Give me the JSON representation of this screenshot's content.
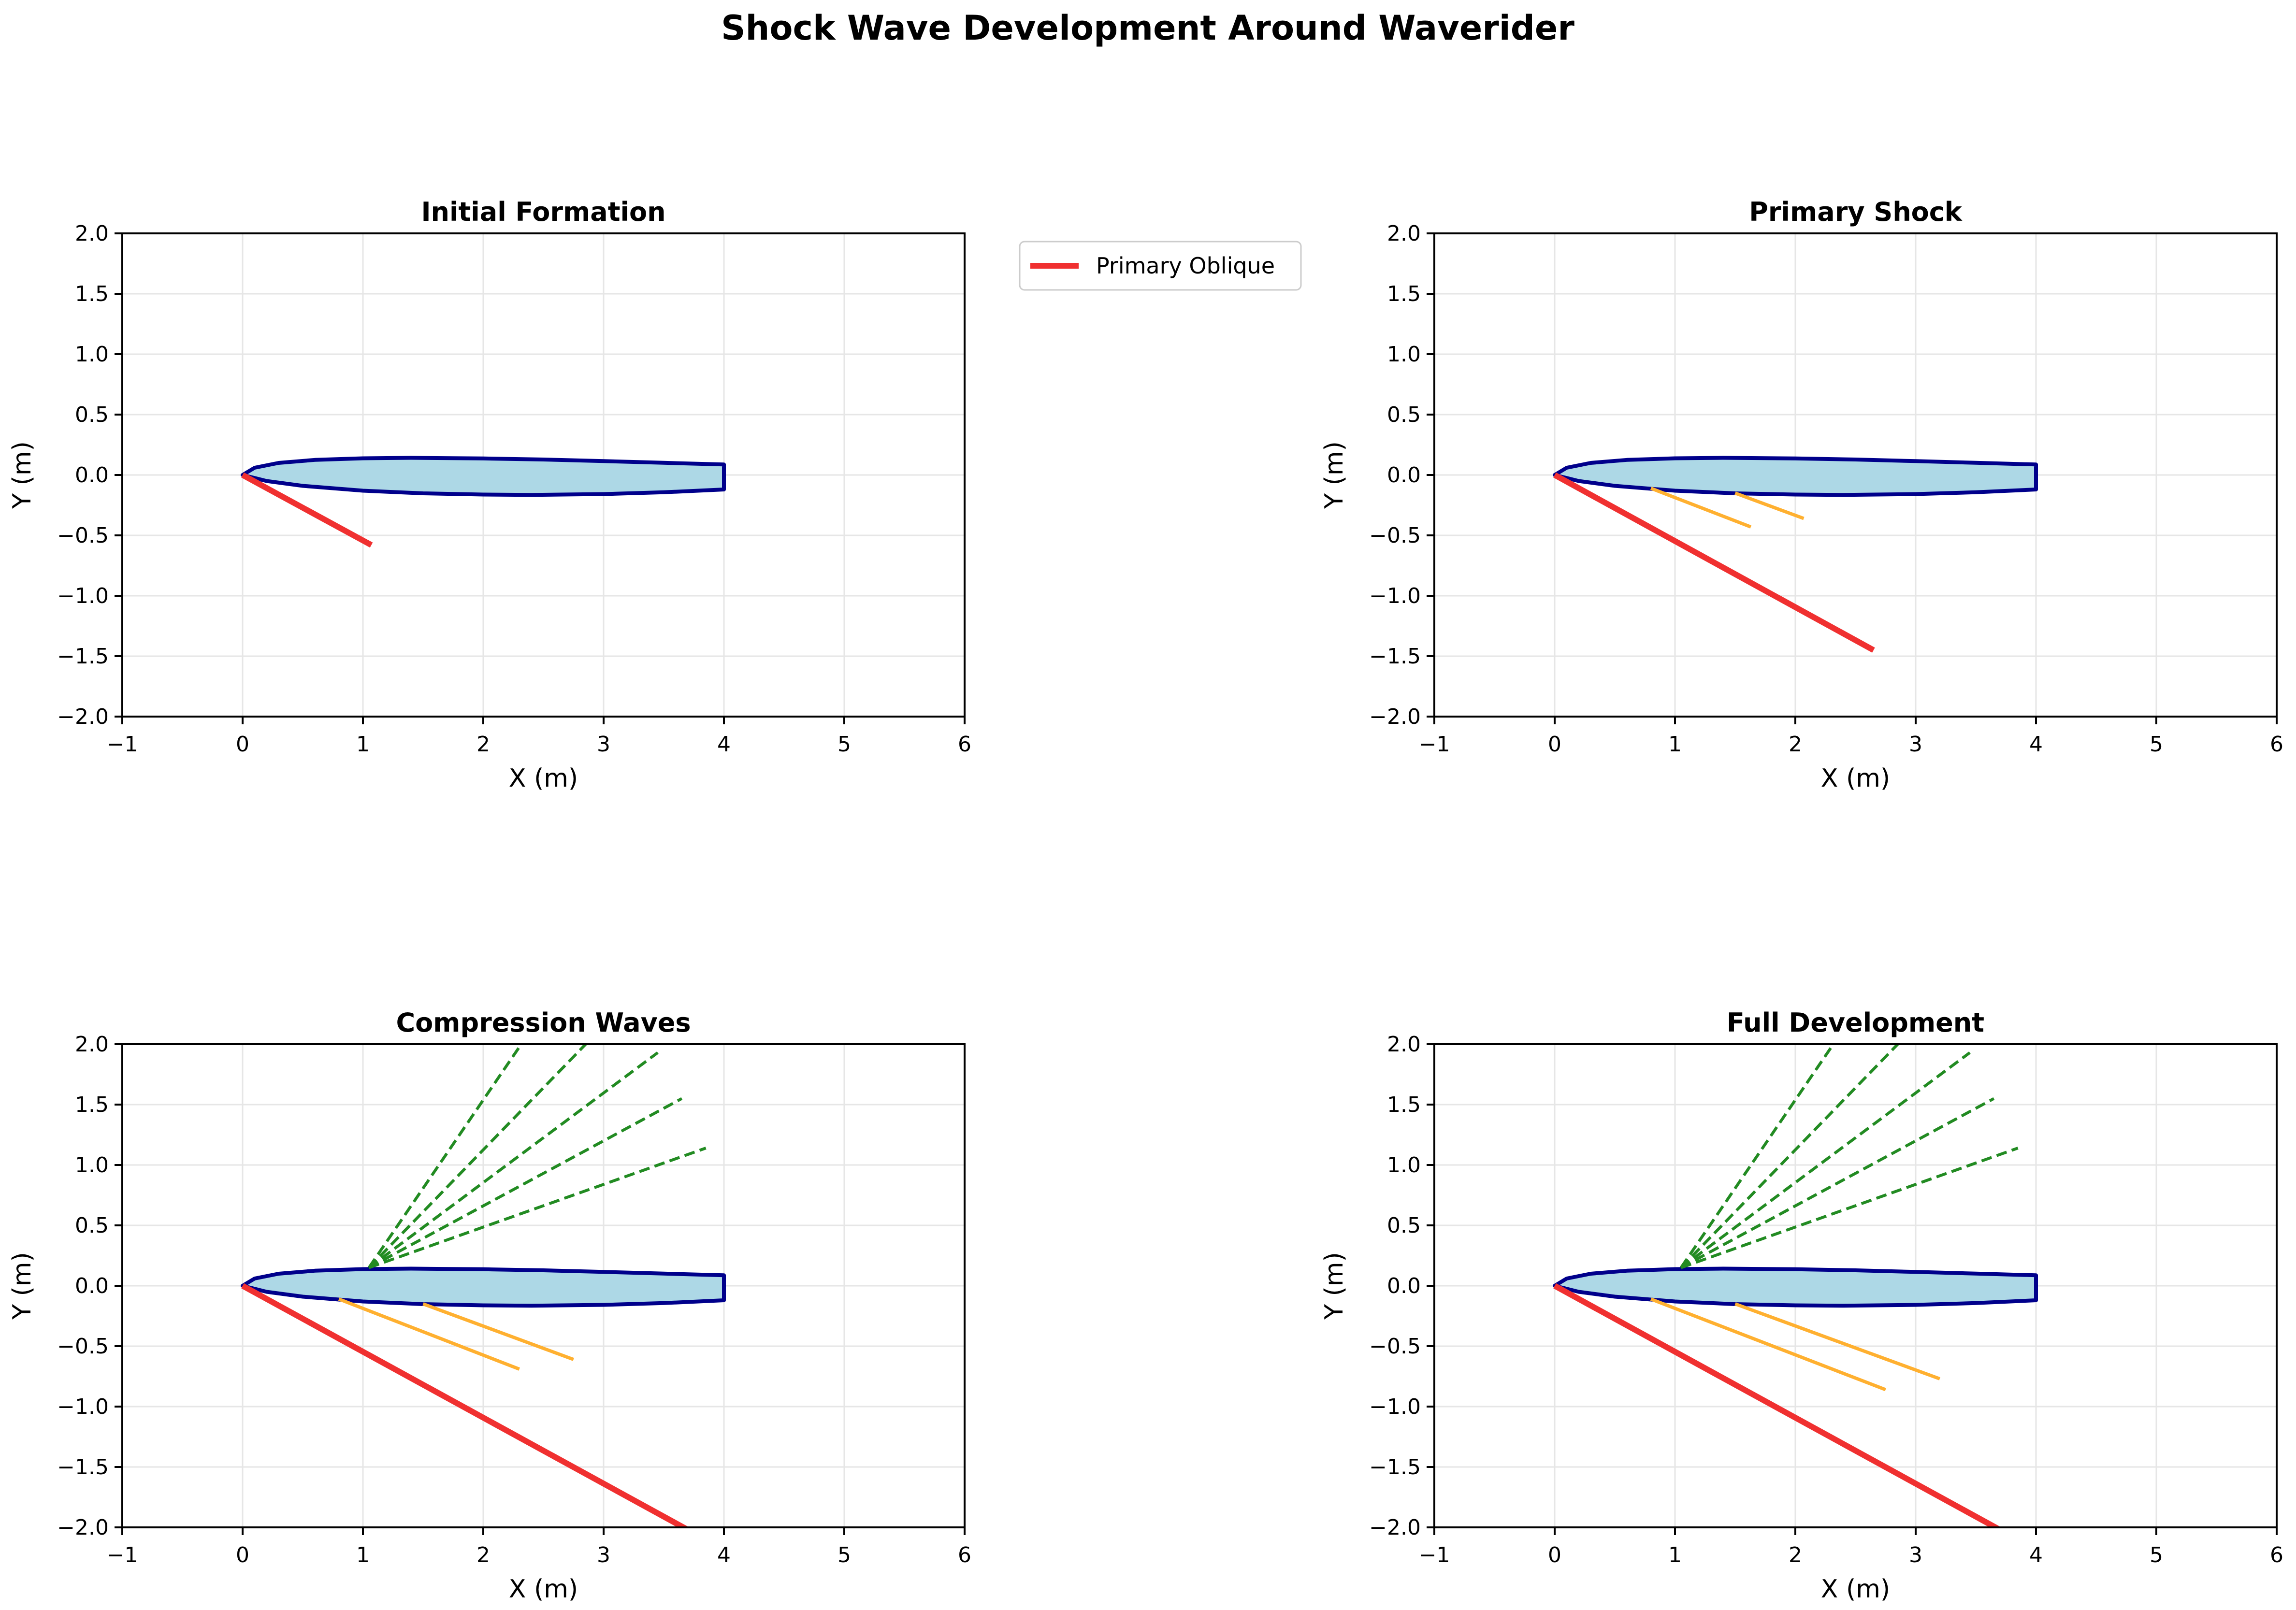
{
  "figure": {
    "title": "Shock Wave Development Around Waverider"
  },
  "colors": {
    "body_fill": "#add8e6",
    "body_edge": "#00008b",
    "primary_shock": "#f03030",
    "secondary_shock": "#ffb030",
    "expansion": "#228b22",
    "grid": "#e6e6e6",
    "axes": "#000000"
  },
  "legend": {
    "entries": [
      "Primary Oblique"
    ],
    "placement": "outside-right-of-top-left-panel"
  },
  "chart_data": [
    {
      "type": "line",
      "title": "Initial Formation",
      "xlabel": "X (m)",
      "ylabel": "Y (m)",
      "xlim": [
        -1,
        6
      ],
      "ylim": [
        -2,
        2
      ],
      "xticks": [
        -1,
        0,
        1,
        2,
        3,
        4,
        5,
        6
      ],
      "yticks": [
        -2.0,
        -1.5,
        -1.0,
        -0.5,
        0.0,
        0.5,
        1.0,
        1.5,
        2.0
      ],
      "grid": true,
      "waverider": {
        "upper": [
          [
            0,
            0
          ],
          [
            0.1,
            0.06
          ],
          [
            0.3,
            0.1
          ],
          [
            0.6,
            0.125
          ],
          [
            1.0,
            0.138
          ],
          [
            1.4,
            0.142
          ],
          [
            2.0,
            0.137
          ],
          [
            2.5,
            0.128
          ],
          [
            3.0,
            0.115
          ],
          [
            3.5,
            0.101
          ],
          [
            4.0,
            0.087
          ]
        ],
        "lower": [
          [
            0,
            0
          ],
          [
            0.2,
            -0.05
          ],
          [
            0.5,
            -0.09
          ],
          [
            1.0,
            -0.13
          ],
          [
            1.5,
            -0.152
          ],
          [
            2.0,
            -0.162
          ],
          [
            2.4,
            -0.165
          ],
          [
            3.0,
            -0.158
          ],
          [
            3.5,
            -0.143
          ],
          [
            4.0,
            -0.12
          ]
        ]
      },
      "series": [
        {
          "name": "Primary Oblique",
          "kind": "primary",
          "segments": [
            [
              [
                0,
                0
              ],
              [
                1.07,
                -0.58
              ]
            ]
          ]
        }
      ]
    },
    {
      "type": "line",
      "title": "Primary Shock",
      "xlabel": "X (m)",
      "ylabel": "Y (m)",
      "xlim": [
        -1,
        6
      ],
      "ylim": [
        -2,
        2
      ],
      "xticks": [
        -1,
        0,
        1,
        2,
        3,
        4,
        5,
        6
      ],
      "yticks": [
        -2.0,
        -1.5,
        -1.0,
        -0.5,
        0.0,
        0.5,
        1.0,
        1.5,
        2.0
      ],
      "grid": true,
      "waverider": {
        "upper": [
          [
            0,
            0
          ],
          [
            0.1,
            0.06
          ],
          [
            0.3,
            0.1
          ],
          [
            0.6,
            0.125
          ],
          [
            1.0,
            0.138
          ],
          [
            1.4,
            0.142
          ],
          [
            2.0,
            0.137
          ],
          [
            2.5,
            0.128
          ],
          [
            3.0,
            0.115
          ],
          [
            3.5,
            0.101
          ],
          [
            4.0,
            0.087
          ]
        ],
        "lower": [
          [
            0,
            0
          ],
          [
            0.2,
            -0.05
          ],
          [
            0.5,
            -0.09
          ],
          [
            1.0,
            -0.13
          ],
          [
            1.5,
            -0.152
          ],
          [
            2.0,
            -0.162
          ],
          [
            2.4,
            -0.165
          ],
          [
            3.0,
            -0.158
          ],
          [
            3.5,
            -0.143
          ],
          [
            4.0,
            -0.12
          ]
        ]
      },
      "series": [
        {
          "kind": "primary",
          "segments": [
            [
              [
                0,
                0
              ],
              [
                2.65,
                -1.45
              ]
            ]
          ]
        },
        {
          "kind": "secondary",
          "segments": [
            [
              [
                0.8,
                -0.11
              ],
              [
                1.63,
                -0.43
              ]
            ],
            [
              [
                1.5,
                -0.15
              ],
              [
                2.07,
                -0.36
              ]
            ]
          ]
        }
      ]
    },
    {
      "type": "line",
      "title": "Compression Waves",
      "xlabel": "X (m)",
      "ylabel": "Y (m)",
      "xlim": [
        -1,
        6
      ],
      "ylim": [
        -2,
        2
      ],
      "xticks": [
        -1,
        0,
        1,
        2,
        3,
        4,
        5,
        6
      ],
      "yticks": [
        -2.0,
        -1.5,
        -1.0,
        -0.5,
        0.0,
        0.5,
        1.0,
        1.5,
        2.0
      ],
      "grid": true,
      "waverider": {
        "upper": [
          [
            0,
            0
          ],
          [
            0.1,
            0.06
          ],
          [
            0.3,
            0.1
          ],
          [
            0.6,
            0.125
          ],
          [
            1.0,
            0.138
          ],
          [
            1.4,
            0.142
          ],
          [
            2.0,
            0.137
          ],
          [
            2.5,
            0.128
          ],
          [
            3.0,
            0.115
          ],
          [
            3.5,
            0.101
          ],
          [
            4.0,
            0.087
          ]
        ],
        "lower": [
          [
            0,
            0
          ],
          [
            0.2,
            -0.05
          ],
          [
            0.5,
            -0.09
          ],
          [
            1.0,
            -0.13
          ],
          [
            1.5,
            -0.152
          ],
          [
            2.0,
            -0.162
          ],
          [
            2.4,
            -0.165
          ],
          [
            3.0,
            -0.158
          ],
          [
            3.5,
            -0.143
          ],
          [
            4.0,
            -0.12
          ]
        ]
      },
      "series": [
        {
          "kind": "primary",
          "segments": [
            [
              [
                0,
                0
              ],
              [
                3.7,
                -2.02
              ]
            ]
          ]
        },
        {
          "kind": "secondary",
          "segments": [
            [
              [
                0.8,
                -0.11
              ],
              [
                2.3,
                -0.69
              ]
            ],
            [
              [
                1.5,
                -0.15
              ],
              [
                2.75,
                -0.61
              ]
            ]
          ]
        },
        {
          "kind": "expansion",
          "segments": [
            [
              [
                1.05,
                0.15
              ],
              [
                2.35,
                2.05
              ]
            ],
            [
              [
                1.05,
                0.15
              ],
              [
                2.9,
                2.05
              ]
            ],
            [
              [
                1.05,
                0.15
              ],
              [
                3.45,
                1.93
              ]
            ],
            [
              [
                1.05,
                0.15
              ],
              [
                3.65,
                1.55
              ]
            ],
            [
              [
                1.05,
                0.15
              ],
              [
                3.85,
                1.14
              ]
            ]
          ]
        }
      ]
    },
    {
      "type": "line",
      "title": "Full Development",
      "xlabel": "X (m)",
      "ylabel": "Y (m)",
      "xlim": [
        -1,
        6
      ],
      "ylim": [
        -2,
        2
      ],
      "xticks": [
        -1,
        0,
        1,
        2,
        3,
        4,
        5,
        6
      ],
      "yticks": [
        -2.0,
        -1.5,
        -1.0,
        -0.5,
        0.0,
        0.5,
        1.0,
        1.5,
        2.0
      ],
      "grid": true,
      "waverider": {
        "upper": [
          [
            0,
            0
          ],
          [
            0.1,
            0.06
          ],
          [
            0.3,
            0.1
          ],
          [
            0.6,
            0.125
          ],
          [
            1.0,
            0.138
          ],
          [
            1.4,
            0.142
          ],
          [
            2.0,
            0.137
          ],
          [
            2.5,
            0.128
          ],
          [
            3.0,
            0.115
          ],
          [
            3.5,
            0.101
          ],
          [
            4.0,
            0.087
          ]
        ],
        "lower": [
          [
            0,
            0
          ],
          [
            0.2,
            -0.05
          ],
          [
            0.5,
            -0.09
          ],
          [
            1.0,
            -0.13
          ],
          [
            1.5,
            -0.152
          ],
          [
            2.0,
            -0.162
          ],
          [
            2.4,
            -0.165
          ],
          [
            3.0,
            -0.158
          ],
          [
            3.5,
            -0.143
          ],
          [
            4.0,
            -0.12
          ]
        ]
      },
      "series": [
        {
          "kind": "primary",
          "segments": [
            [
              [
                0,
                0
              ],
              [
                3.7,
                -2.02
              ]
            ]
          ]
        },
        {
          "kind": "secondary",
          "segments": [
            [
              [
                0.8,
                -0.11
              ],
              [
                2.75,
                -0.86
              ]
            ],
            [
              [
                1.5,
                -0.15
              ],
              [
                3.2,
                -0.77
              ]
            ]
          ]
        },
        {
          "kind": "expansion",
          "segments": [
            [
              [
                1.05,
                0.15
              ],
              [
                2.35,
                2.05
              ]
            ],
            [
              [
                1.05,
                0.15
              ],
              [
                2.9,
                2.05
              ]
            ],
            [
              [
                1.05,
                0.15
              ],
              [
                3.45,
                1.93
              ]
            ],
            [
              [
                1.05,
                0.15
              ],
              [
                3.65,
                1.55
              ]
            ],
            [
              [
                1.05,
                0.15
              ],
              [
                3.85,
                1.14
              ]
            ]
          ]
        }
      ]
    }
  ]
}
